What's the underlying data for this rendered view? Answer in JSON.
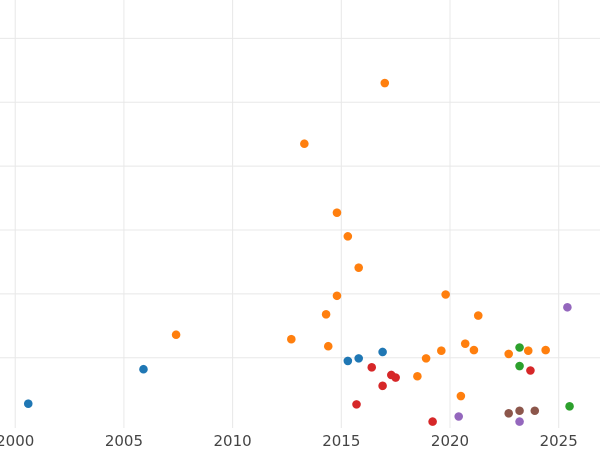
{
  "chart_data": {
    "type": "scatter",
    "title": "",
    "xlabel": "",
    "ylabel": "",
    "xlim": [
      1999.3,
      2026.9
    ],
    "ylim": [
      -0.1,
      6.6
    ],
    "xticks": [
      2000,
      2005,
      2010,
      2015,
      2020,
      2025
    ],
    "xtick_labels": [
      "2000",
      "2005",
      "2010",
      "2015",
      "2020",
      "2025"
    ],
    "yticks": [
      1,
      2,
      3,
      4,
      5,
      6
    ],
    "grid": true,
    "colors": {
      "blue": "#1f77b4",
      "orange": "#ff7f0e",
      "green": "#2ca02c",
      "red": "#d62728",
      "purple": "#9467bd",
      "brown": "#8c564b"
    },
    "series": [
      {
        "name": "blue",
        "color": "#1f77b4",
        "points": [
          [
            2000.6,
            0.28
          ],
          [
            2005.9,
            0.82
          ],
          [
            2015.3,
            0.95
          ],
          [
            2015.8,
            0.99
          ],
          [
            2016.9,
            1.09
          ]
        ]
      },
      {
        "name": "orange",
        "color": "#ff7f0e",
        "points": [
          [
            2007.4,
            1.36
          ],
          [
            2012.7,
            1.29
          ],
          [
            2013.3,
            4.35
          ],
          [
            2014.3,
            1.68
          ],
          [
            2014.4,
            1.18
          ],
          [
            2014.8,
            3.27
          ],
          [
            2014.8,
            1.97
          ],
          [
            2015.3,
            2.9
          ],
          [
            2015.8,
            2.41
          ],
          [
            2017.0,
            5.3
          ],
          [
            2018.5,
            0.71
          ],
          [
            2018.9,
            0.99
          ],
          [
            2019.6,
            1.11
          ],
          [
            2019.8,
            1.99
          ],
          [
            2020.5,
            0.4
          ],
          [
            2020.7,
            1.22
          ],
          [
            2021.1,
            1.12
          ],
          [
            2021.3,
            1.66
          ],
          [
            2022.7,
            1.06
          ],
          [
            2023.6,
            1.11
          ],
          [
            2024.4,
            1.12
          ]
        ]
      },
      {
        "name": "green",
        "color": "#2ca02c",
        "points": [
          [
            2023.2,
            1.16
          ],
          [
            2023.2,
            0.87
          ],
          [
            2025.5,
            0.24
          ]
        ]
      },
      {
        "name": "red",
        "color": "#d62728",
        "points": [
          [
            2015.7,
            0.27
          ],
          [
            2016.4,
            0.85
          ],
          [
            2016.9,
            0.56
          ],
          [
            2017.3,
            0.73
          ],
          [
            2017.5,
            0.69
          ],
          [
            2019.2,
            0.0
          ],
          [
            2023.7,
            0.8
          ]
        ]
      },
      {
        "name": "purple",
        "color": "#9467bd",
        "points": [
          [
            2020.4,
            0.08
          ],
          [
            2023.2,
            0.0
          ],
          [
            2025.4,
            1.79
          ]
        ]
      },
      {
        "name": "brown",
        "color": "#8c564b",
        "points": [
          [
            2022.7,
            0.13
          ],
          [
            2023.2,
            0.17
          ],
          [
            2023.9,
            0.17
          ]
        ]
      }
    ]
  }
}
